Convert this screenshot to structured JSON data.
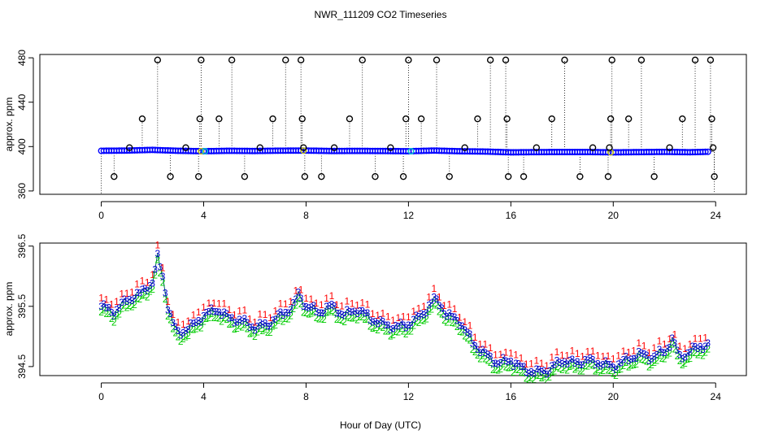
{
  "title": "NWR_111209  CO2 Timeseries",
  "xlabel": "Hour of Day (UTC)",
  "colors": {
    "primary": "#0000ff",
    "raw_marker": "#000000",
    "flag_cyan": "#00cccc",
    "flag_yellow": "#cccc00",
    "series_1": "#ff0000",
    "series_2": "#00cc00",
    "series_3": "#0000cc",
    "connector": "#006666"
  },
  "chart_data": [
    {
      "type": "scatter",
      "panel": "top",
      "ylabel": "approx. ppm",
      "xlim": [
        -2.4,
        25.2
      ],
      "ylim": [
        357,
        483
      ],
      "xticks": [
        0,
        4,
        8,
        12,
        16,
        20,
        24
      ],
      "yticks": [
        360,
        400,
        440,
        480
      ],
      "baseline": {
        "x": [
          0,
          1,
          2,
          3,
          4,
          5,
          6,
          7,
          8,
          9,
          10,
          11,
          12,
          13,
          14,
          15,
          16,
          17,
          18,
          19,
          20,
          21,
          22,
          23,
          23.7
        ],
        "y": [
          396.2,
          396.4,
          397.0,
          396.2,
          395.8,
          396.2,
          396.0,
          396.3,
          396.4,
          396.0,
          396.1,
          396.0,
          395.8,
          396.4,
          395.8,
          395.5,
          394.8,
          395.0,
          395.1,
          395.1,
          394.8,
          395.0,
          395.2,
          394.9,
          395.3
        ]
      },
      "spikes": [
        {
          "x": 0.5,
          "y": 373
        },
        {
          "x": 1.1,
          "y": 399
        },
        {
          "x": 1.6,
          "y": 425
        },
        {
          "x": 2.2,
          "y": 478
        },
        {
          "x": 2.7,
          "y": 373
        },
        {
          "x": 3.3,
          "y": 399
        },
        {
          "x": 3.8,
          "y": 373
        },
        {
          "x": 3.85,
          "y": 425
        },
        {
          "x": 3.9,
          "y": 478
        },
        {
          "x": 4.6,
          "y": 425
        },
        {
          "x": 5.1,
          "y": 478
        },
        {
          "x": 5.6,
          "y": 373
        },
        {
          "x": 6.2,
          "y": 399
        },
        {
          "x": 6.7,
          "y": 425
        },
        {
          "x": 7.2,
          "y": 478
        },
        {
          "x": 7.8,
          "y": 478
        },
        {
          "x": 7.85,
          "y": 425
        },
        {
          "x": 7.9,
          "y": 399
        },
        {
          "x": 7.95,
          "y": 373
        },
        {
          "x": 8.6,
          "y": 373
        },
        {
          "x": 9.1,
          "y": 399
        },
        {
          "x": 9.7,
          "y": 425
        },
        {
          "x": 10.2,
          "y": 478
        },
        {
          "x": 10.7,
          "y": 373
        },
        {
          "x": 11.3,
          "y": 399
        },
        {
          "x": 11.8,
          "y": 373
        },
        {
          "x": 11.9,
          "y": 425
        },
        {
          "x": 12.0,
          "y": 478
        },
        {
          "x": 12.5,
          "y": 425
        },
        {
          "x": 13.1,
          "y": 478
        },
        {
          "x": 13.6,
          "y": 373
        },
        {
          "x": 14.2,
          "y": 399
        },
        {
          "x": 14.7,
          "y": 425
        },
        {
          "x": 15.2,
          "y": 478
        },
        {
          "x": 15.8,
          "y": 478
        },
        {
          "x": 15.85,
          "y": 425
        },
        {
          "x": 15.9,
          "y": 373
        },
        {
          "x": 16.5,
          "y": 373
        },
        {
          "x": 17.0,
          "y": 399
        },
        {
          "x": 17.6,
          "y": 425
        },
        {
          "x": 18.1,
          "y": 478
        },
        {
          "x": 18.7,
          "y": 373
        },
        {
          "x": 19.2,
          "y": 399
        },
        {
          "x": 19.8,
          "y": 373
        },
        {
          "x": 19.85,
          "y": 399
        },
        {
          "x": 19.9,
          "y": 425
        },
        {
          "x": 19.95,
          "y": 478
        },
        {
          "x": 20.6,
          "y": 425
        },
        {
          "x": 21.1,
          "y": 478
        },
        {
          "x": 21.6,
          "y": 373
        },
        {
          "x": 22.2,
          "y": 399
        },
        {
          "x": 22.7,
          "y": 425
        },
        {
          "x": 23.2,
          "y": 478
        },
        {
          "x": 23.8,
          "y": 478
        },
        {
          "x": 23.85,
          "y": 425
        },
        {
          "x": 23.9,
          "y": 399
        },
        {
          "x": 23.95,
          "y": 373
        }
      ]
    },
    {
      "type": "line",
      "panel": "bottom",
      "ylabel": "approx. ppm",
      "xlim": [
        -2.4,
        25.2
      ],
      "ylim": [
        394.35,
        396.55
      ],
      "xticks": [
        0,
        4,
        8,
        12,
        16,
        20,
        24
      ],
      "yticks": [
        394.5,
        395.5,
        396.5
      ],
      "series_offsets": {
        "1": 0.14,
        "2": -0.1,
        "3": 0.0
      },
      "series": [
        {
          "name": "3",
          "x": [
            0,
            0.5,
            1.0,
            1.5,
            2.0,
            2.2,
            2.4,
            2.6,
            2.8,
            3.0,
            3.5,
            4.0,
            4.5,
            5.0,
            5.5,
            6.0,
            6.5,
            7.0,
            7.5,
            7.7,
            8.0,
            8.5,
            9.0,
            9.5,
            10.0,
            10.5,
            11.0,
            11.5,
            12.0,
            12.5,
            13.0,
            13.2,
            13.5,
            14.0,
            14.5,
            15.0,
            15.5,
            16.0,
            16.5,
            17.0,
            17.5,
            18.0,
            18.5,
            19.0,
            19.5,
            20.0,
            20.5,
            21.0,
            21.5,
            22.0,
            22.3,
            22.6,
            23.0,
            23.5,
            23.7
          ],
          "y": [
            395.5,
            395.4,
            395.6,
            395.7,
            395.9,
            396.3,
            396.0,
            395.5,
            395.2,
            395.05,
            395.15,
            395.35,
            395.45,
            395.3,
            395.25,
            395.15,
            395.2,
            395.35,
            395.5,
            395.7,
            395.5,
            395.4,
            395.5,
            395.35,
            395.45,
            395.3,
            395.2,
            395.15,
            395.2,
            395.35,
            395.6,
            395.55,
            395.35,
            395.25,
            394.9,
            394.7,
            394.55,
            394.6,
            394.45,
            394.4,
            394.45,
            394.6,
            394.55,
            394.6,
            394.55,
            394.5,
            394.6,
            394.7,
            394.65,
            394.75,
            394.95,
            394.65,
            394.75,
            394.85,
            394.85
          ]
        }
      ]
    }
  ]
}
